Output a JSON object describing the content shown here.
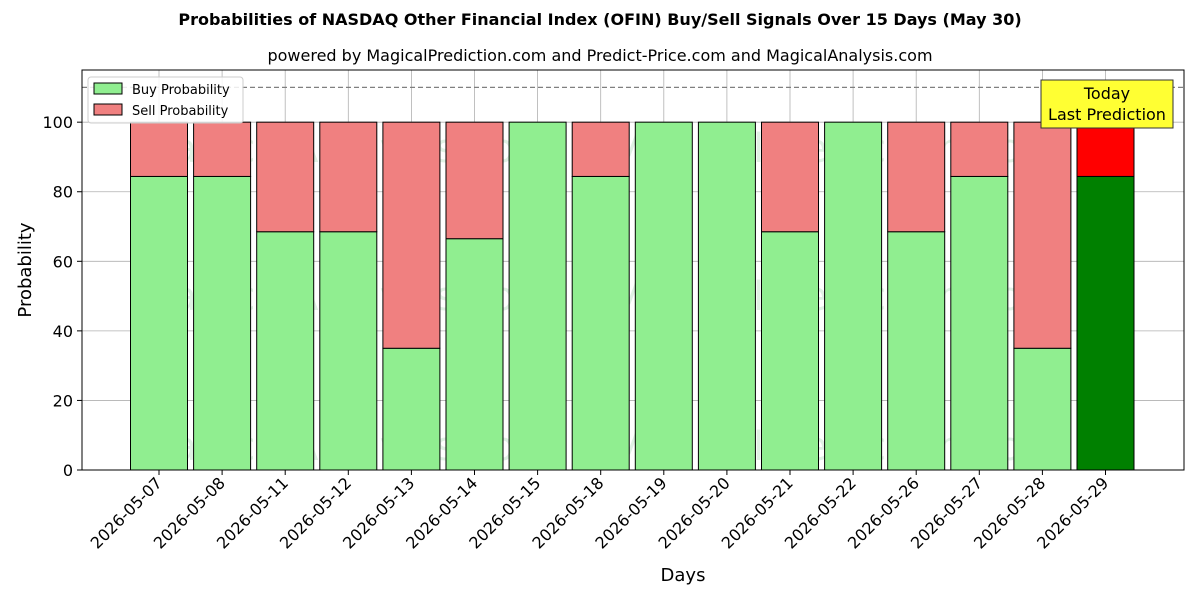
{
  "chart_data": {
    "type": "bar",
    "stacked": true,
    "title": "Probabilities of NASDAQ Other Financial Index (OFIN) Buy/Sell Signals Over 15 Days (May 30)",
    "subtitle": "powered by MagicalPrediction.com and Predict-Price.com and MagicalAnalysis.com",
    "xlabel": "Days",
    "ylabel": "Probability",
    "ylim": [
      0,
      115
    ],
    "yticks": [
      0,
      20,
      40,
      60,
      80,
      100
    ],
    "reference_line": 110,
    "grid": true,
    "legend_position": "top-left",
    "categories": [
      "2026-05-07",
      "2026-05-08",
      "2026-05-11",
      "2026-05-12",
      "2026-05-13",
      "2026-05-14",
      "2026-05-15",
      "2026-05-18",
      "2026-05-19",
      "2026-05-20",
      "2026-05-21",
      "2026-05-22",
      "2026-05-26",
      "2026-05-27",
      "2026-05-28",
      "2026-05-29"
    ],
    "series": [
      {
        "name": "Buy Probability",
        "color": "#90EE90",
        "highlight_color": "#008000",
        "values": [
          84.4,
          84.4,
          68.5,
          68.5,
          35.0,
          66.5,
          100,
          84.4,
          100,
          100,
          68.5,
          100,
          68.5,
          84.4,
          35.0,
          84.4
        ]
      },
      {
        "name": "Sell Probability",
        "color": "#F08080",
        "highlight_color": "#FF0000",
        "values": [
          15.6,
          15.6,
          31.5,
          31.5,
          65.0,
          33.5,
          0,
          15.6,
          0,
          0,
          31.5,
          0,
          31.5,
          15.6,
          65.0,
          15.6
        ]
      }
    ],
    "highlight_index": 15,
    "annotation": {
      "line1": "Today",
      "line2": "Last Prediction",
      "color": "#FFFF33"
    },
    "watermarks": [
      "MagicalAnalysis.com",
      "MagicalPrediction.com"
    ]
  }
}
